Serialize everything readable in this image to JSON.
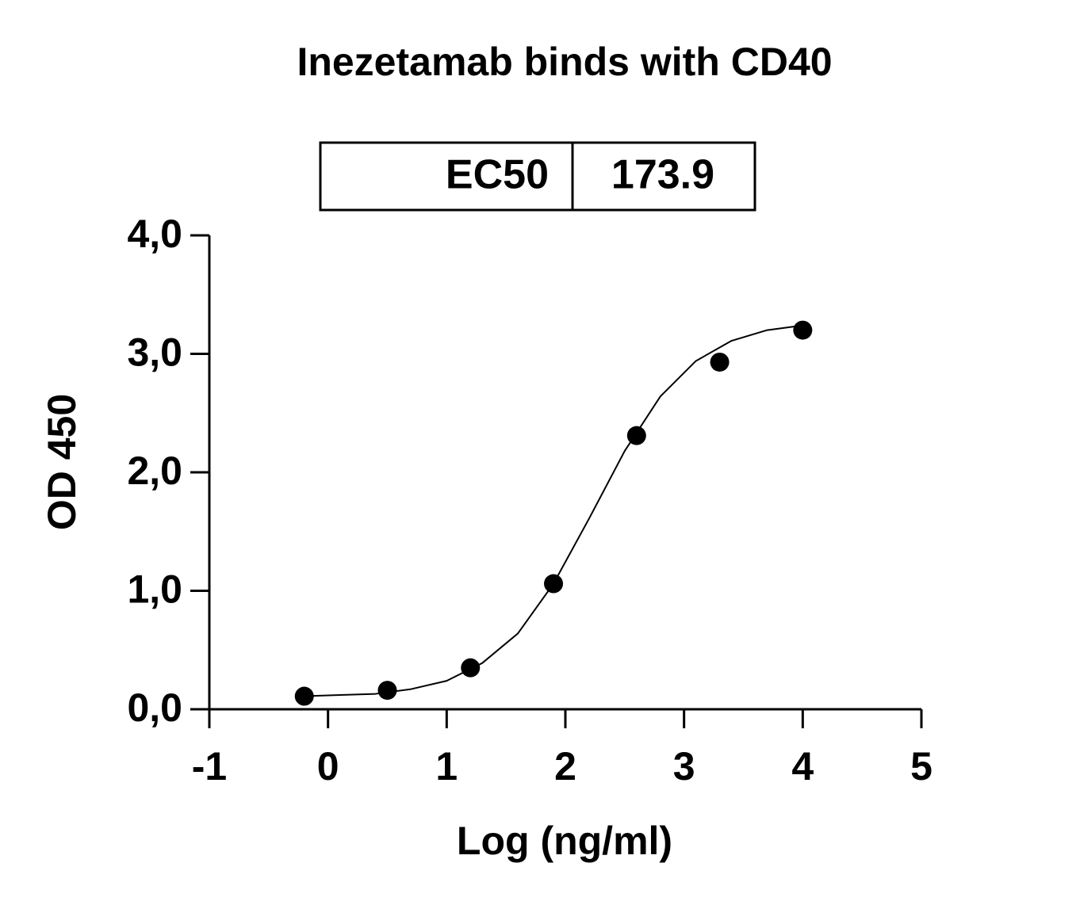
{
  "chart_data": {
    "type": "scatter",
    "title": "Inezetamab binds with CD40",
    "table": {
      "label": "EC50",
      "value": 173.9
    },
    "x_label": "Log (ng/ml)",
    "y_label": "OD 450",
    "x": [
      -0.2,
      0.5,
      1.2,
      1.9,
      2.6,
      3.3,
      4.0
    ],
    "values": [
      0.11,
      0.16,
      0.35,
      1.06,
      2.31,
      2.93,
      3.2
    ],
    "color": "#000000",
    "fit": {
      "x": [
        -0.2,
        0.1,
        0.4,
        0.7,
        1.0,
        1.3,
        1.6,
        1.9,
        2.2,
        2.5,
        2.8,
        3.1,
        3.4,
        3.7,
        4.0
      ],
      "values": [
        0.11,
        0.12,
        0.13,
        0.17,
        0.24,
        0.39,
        0.64,
        1.06,
        1.61,
        2.18,
        2.64,
        2.94,
        3.11,
        3.2,
        3.24
      ]
    },
    "xlim": [
      -1,
      5
    ],
    "xticks": [
      -1,
      0,
      1,
      2,
      3,
      4,
      5
    ],
    "ylim": [
      0,
      4
    ],
    "yticks": [
      {
        "value": 0,
        "label": "0,0"
      },
      {
        "value": 1,
        "label": "1,0"
      },
      {
        "value": 2,
        "label": "2,0"
      },
      {
        "value": 3,
        "label": "3,0"
      },
      {
        "value": 4,
        "label": "4,0"
      }
    ],
    "grid": false
  }
}
